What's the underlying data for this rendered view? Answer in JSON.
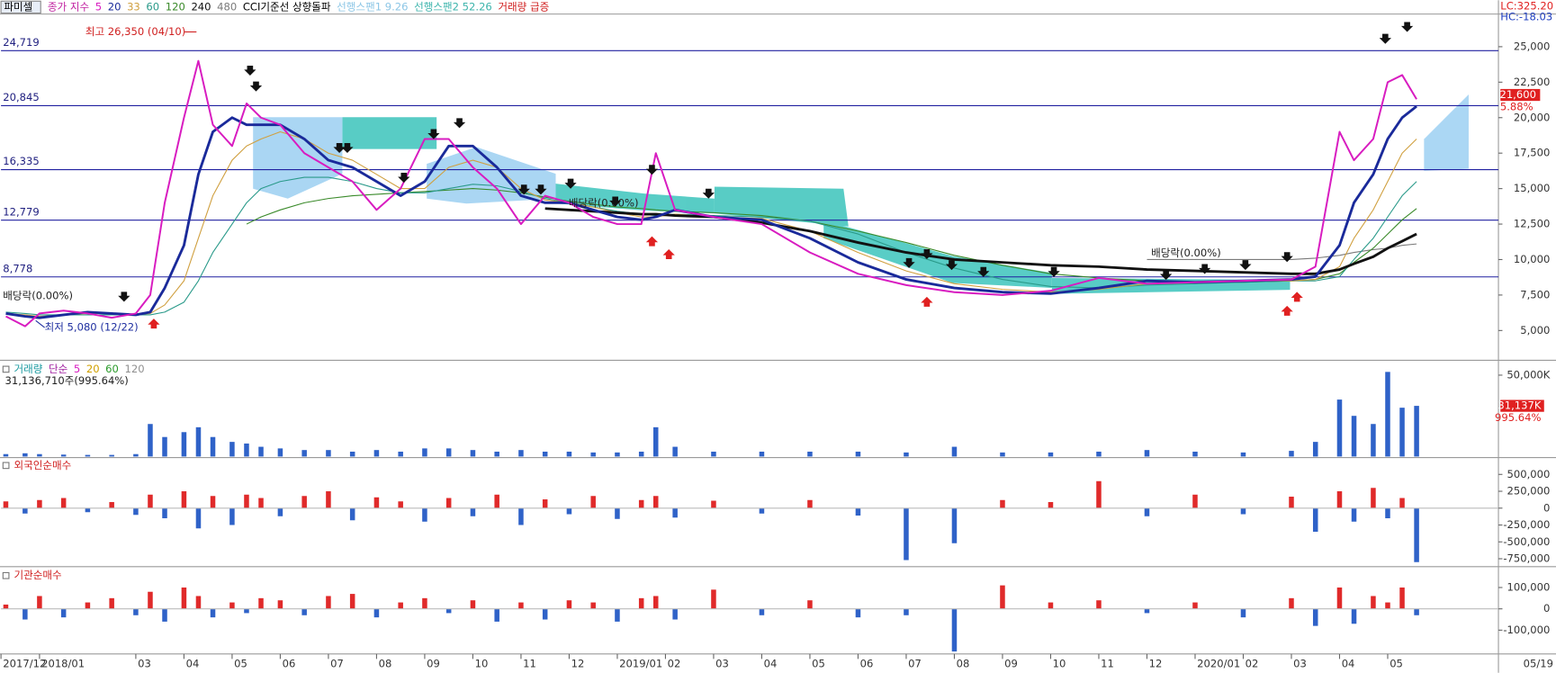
{
  "chart_data": [
    {
      "type": "line",
      "title": "파미셀",
      "legend_title": "종가 지수",
      "signals": [
        {
          "label": "CCI기준선 상향돌파",
          "color": "#000000"
        },
        {
          "label": "선행스팬1 9.26",
          "color": "#8cc6e6"
        },
        {
          "label": "선행스팬2 52.26",
          "color": "#3cb4ac"
        },
        {
          "label": "거래량 급증",
          "color": "#d02020"
        }
      ],
      "x": [
        0.3,
        0.7,
        1.0,
        1.5,
        2.0,
        2.5,
        3.0,
        3.3,
        3.6,
        4.0,
        4.3,
        4.6,
        5.0,
        5.3,
        5.6,
        6.0,
        6.5,
        7.0,
        7.5,
        8.0,
        8.5,
        9.0,
        9.5,
        10.0,
        10.5,
        11.0,
        11.5,
        12.0,
        12.5,
        13.0,
        13.5,
        13.8,
        14.2,
        15.0,
        16.0,
        17.0,
        18.0,
        19.0,
        20.0,
        21.0,
        22.0,
        23.0,
        24.0,
        25.0,
        26.0,
        27.0,
        27.5,
        28.0,
        28.3,
        28.7,
        29.0,
        29.3,
        29.6
      ],
      "xlim": [
        0.2,
        31.3
      ],
      "ylim": [
        2970,
        27300
      ],
      "yticks": [
        {
          "value": 5000,
          "label": "5,000"
        },
        {
          "value": 7500,
          "label": "7,500"
        },
        {
          "value": 10000,
          "label": "10,000"
        },
        {
          "value": 12500,
          "label": "12,500"
        },
        {
          "value": 15000,
          "label": "15,000"
        },
        {
          "value": 17500,
          "label": "17,500"
        },
        {
          "value": 20000,
          "label": "20,000"
        },
        {
          "value": 22500,
          "label": "22,500"
        },
        {
          "value": 25000,
          "label": "25,000"
        }
      ],
      "series": [
        {
          "name": "5",
          "color": "#d81cc0",
          "values": [
            6000,
            5300,
            6200,
            6400,
            6200,
            5900,
            6200,
            7500,
            14000,
            20000,
            24000,
            19500,
            18000,
            21000,
            20000,
            19500,
            17500,
            16500,
            15500,
            13500,
            15000,
            18500,
            18500,
            16500,
            15000,
            12500,
            14500,
            14000,
            13000,
            12500,
            12500,
            17500,
            13500,
            13000,
            12500,
            10500,
            9000,
            8200,
            7700,
            7500,
            7800,
            8700,
            8300,
            8400,
            8500,
            8600,
            9500,
            19000,
            17000,
            18500,
            22500,
            23000,
            21300
          ]
        },
        {
          "name": "20",
          "color": "#1a2a9a",
          "values": [
            6200,
            6000,
            5900,
            6100,
            6300,
            6200,
            6100,
            6300,
            8000,
            11000,
            16000,
            19000,
            20000,
            19500,
            19500,
            19500,
            18500,
            17000,
            16500,
            15500,
            14500,
            15500,
            18000,
            18000,
            16500,
            14500,
            14000,
            14000,
            13500,
            13000,
            12800,
            13000,
            13500,
            13000,
            12800,
            11500,
            9800,
            8600,
            8000,
            7700,
            7600,
            8000,
            8500,
            8400,
            8500,
            8600,
            8800,
            11000,
            14000,
            16000,
            18500,
            20000,
            20800
          ]
        },
        {
          "name": "33",
          "color": "#d0a040",
          "values": [
            6200,
            6100,
            6000,
            6100,
            6200,
            6200,
            6100,
            6200,
            6800,
            8500,
            11500,
            14500,
            17000,
            18000,
            18500,
            19000,
            18500,
            17500,
            17000,
            16000,
            15000,
            15000,
            16500,
            17000,
            16500,
            15000,
            14200,
            14000,
            13700,
            13300,
            13000,
            13000,
            13200,
            13000,
            12900,
            12000,
            10500,
            9200,
            8300,
            7900,
            7700,
            7900,
            8300,
            8400,
            8500,
            8500,
            8600,
            9500,
            11500,
            13500,
            15500,
            17500,
            18500
          ]
        },
        {
          "name": "60",
          "color": "#2a9a8a",
          "values": [
            6300,
            6200,
            6100,
            6100,
            6100,
            6100,
            6100,
            6100,
            6300,
            7000,
            8500,
            10500,
            12500,
            14000,
            15000,
            15500,
            15800,
            15800,
            15500,
            15000,
            14700,
            14700,
            15000,
            15300,
            15200,
            14800,
            14300,
            14000,
            13700,
            13400,
            13200,
            13100,
            13200,
            13100,
            13000,
            12700,
            11800,
            10500,
            9400,
            8600,
            8100,
            8000,
            8200,
            8300,
            8400,
            8500,
            8500,
            8800,
            10000,
            11500,
            13000,
            14500,
            15500
          ]
        },
        {
          "name": "120",
          "color": "#3a8a2a",
          "values": [
            null,
            null,
            null,
            null,
            null,
            null,
            null,
            null,
            null,
            null,
            null,
            null,
            null,
            12500,
            13000,
            13500,
            14000,
            14300,
            14500,
            14600,
            14700,
            14800,
            14900,
            15000,
            14900,
            14700,
            14400,
            14100,
            13900,
            13700,
            13600,
            13500,
            13400,
            13300,
            13100,
            12700,
            12000,
            11200,
            10300,
            9600,
            9000,
            8700,
            8500,
            8400,
            8400,
            8500,
            8600,
            9000,
            9800,
            10800,
            11800,
            12800,
            13600
          ]
        },
        {
          "name": "240",
          "color": "#111111",
          "values": [
            null,
            null,
            null,
            null,
            null,
            null,
            null,
            null,
            null,
            null,
            null,
            null,
            null,
            null,
            null,
            null,
            null,
            null,
            null,
            null,
            null,
            null,
            null,
            null,
            null,
            null,
            13600,
            13500,
            13400,
            13300,
            13200,
            13200,
            13100,
            13000,
            12600,
            12000,
            11200,
            10500,
            10000,
            9800,
            9600,
            9500,
            9300,
            9200,
            9100,
            9000,
            9000,
            9300,
            9700,
            10200,
            10800,
            11300,
            11800
          ]
        },
        {
          "name": "480",
          "color": "#7a7a7a",
          "values": [
            null,
            null,
            null,
            null,
            null,
            null,
            null,
            null,
            null,
            null,
            null,
            null,
            null,
            null,
            null,
            null,
            null,
            null,
            null,
            null,
            null,
            null,
            null,
            null,
            null,
            null,
            null,
            null,
            null,
            null,
            null,
            null,
            null,
            null,
            null,
            null,
            null,
            null,
            null,
            null,
            null,
            null,
            10000,
            10000,
            10000,
            10000,
            10100,
            10300,
            10500,
            10700,
            10800,
            11000,
            11100
          ]
        }
      ],
      "levels": [
        {
          "value": 24719,
          "label": "24,719"
        },
        {
          "value": 20845,
          "label": "20,845"
        },
        {
          "value": 16335,
          "label": "16,335"
        },
        {
          "value": 12779,
          "label": "12,779"
        },
        {
          "value": 8778,
          "label": "8,778"
        }
      ],
      "current_price": {
        "value": 21600,
        "label": "21,600"
      },
      "current_change": "5.88%",
      "lc": "LC:325.20",
      "hc": "HC:-18.03",
      "annotations": [
        "최고 26,350 (04/10)",
        "최저 5,080 (12/22)",
        "배당락(0.00%)",
        "배당락(0.00%)",
        "배당락(0.00%)"
      ]
    },
    {
      "type": "bar",
      "title": "거래량",
      "title_color": "#1a9aa0",
      "legend": [
        {
          "label": "단순",
          "color": "#a020a0"
        },
        {
          "label": "5",
          "color": "#d81cc0"
        },
        {
          "label": "20",
          "color": "#d0a000"
        },
        {
          "label": "60",
          "color": "#2a9a2a"
        },
        {
          "label": "120",
          "color": "#909090"
        }
      ],
      "subtitle": "31,136,710주(995.64%)",
      "x": [
        0.3,
        0.7,
        1.0,
        1.5,
        2.0,
        2.5,
        3.0,
        3.3,
        3.6,
        4.0,
        4.3,
        4.6,
        5.0,
        5.3,
        5.6,
        6.0,
        6.5,
        7.0,
        7.5,
        8.0,
        8.5,
        9.0,
        9.5,
        10.0,
        10.5,
        11.0,
        11.5,
        12.0,
        12.5,
        13.0,
        13.5,
        13.8,
        14.2,
        15.0,
        16.0,
        17.0,
        18.0,
        19.0,
        20.0,
        21.0,
        22.0,
        23.0,
        24.0,
        25.0,
        26.0,
        27.0,
        27.5,
        28.0,
        28.3,
        28.7,
        29.0,
        29.3,
        29.6
      ],
      "xlim": [
        0.2,
        31.3
      ],
      "values": [
        1500,
        2000,
        1500,
        1200,
        1000,
        1000,
        1500,
        20000,
        12000,
        15000,
        18000,
        12000,
        9000,
        8000,
        6000,
        5000,
        4000,
        4000,
        3000,
        4000,
        3000,
        5000,
        5000,
        4000,
        3000,
        4000,
        3000,
        3000,
        2500,
        2500,
        3000,
        18000,
        6000,
        3000,
        3000,
        3000,
        3000,
        2500,
        6000,
        2500,
        2500,
        3000,
        4000,
        3000,
        2500,
        3500,
        9000,
        35000,
        25000,
        20000,
        52000,
        30000,
        31137
      ],
      "pos_color": "#2f62c8",
      "neg_color": "#2f62c8",
      "current": {
        "value": 31137,
        "label": "31,137K"
      },
      "current_change": "995.64%",
      "ylim": [
        0,
        57900
      ],
      "yticks": [
        {
          "value": 50000,
          "label": "50,000K"
        }
      ]
    },
    {
      "type": "bar",
      "title": "외국인순매수",
      "title_color": "#d02020",
      "x": [
        0.3,
        0.7,
        1.0,
        1.5,
        2.0,
        2.5,
        3.0,
        3.3,
        3.6,
        4.0,
        4.3,
        4.6,
        5.0,
        5.3,
        5.6,
        6.0,
        6.5,
        7.0,
        7.5,
        8.0,
        8.5,
        9.0,
        9.5,
        10.0,
        10.5,
        11.0,
        11.5,
        12.0,
        12.5,
        13.0,
        13.5,
        13.8,
        14.2,
        15.0,
        16.0,
        17.0,
        18.0,
        19.0,
        20.0,
        21.0,
        22.0,
        23.0,
        24.0,
        25.0,
        26.0,
        27.0,
        27.5,
        28.0,
        28.3,
        28.7,
        29.0,
        29.3,
        29.6
      ],
      "xlim": [
        0.2,
        31.3
      ],
      "values": [
        100000,
        -80000,
        120000,
        150000,
        -60000,
        90000,
        -100000,
        200000,
        -150000,
        250000,
        -300000,
        180000,
        -250000,
        200000,
        150000,
        -120000,
        180000,
        250000,
        -180000,
        160000,
        100000,
        -200000,
        150000,
        -120000,
        200000,
        -250000,
        130000,
        -90000,
        180000,
        -160000,
        120000,
        180000,
        -140000,
        110000,
        -80000,
        120000,
        -110000,
        -770000,
        -520000,
        120000,
        90000,
        400000,
        -120000,
        200000,
        -90000,
        170000,
        -350000,
        250000,
        -200000,
        300000,
        -150000,
        150000,
        -800000
      ],
      "pos_color": "#e02a2a",
      "neg_color": "#2f62c8",
      "ylim": [
        -852900,
        735300
      ],
      "yticks": [
        {
          "value": 500000,
          "label": "500,000"
        },
        {
          "value": 250000,
          "label": "250,000"
        },
        0,
        {
          "value": -250000,
          "label": "-250,000"
        },
        {
          "value": -500000,
          "label": "-500,000"
        },
        {
          "value": -750000,
          "label": "-750,000"
        }
      ]
    },
    {
      "type": "bar",
      "title": "기관순매수",
      "title_color": "#d02020",
      "x": [
        0.3,
        0.7,
        1.0,
        1.5,
        2.0,
        2.5,
        3.0,
        3.3,
        3.6,
        4.0,
        4.3,
        4.6,
        5.0,
        5.3,
        5.6,
        6.0,
        6.5,
        7.0,
        7.5,
        8.0,
        8.5,
        9.0,
        9.5,
        10.0,
        10.5,
        11.0,
        11.5,
        12.0,
        12.5,
        13.0,
        13.5,
        13.8,
        14.2,
        15.0,
        16.0,
        17.0,
        18.0,
        19.0,
        20.0,
        21.0,
        22.0,
        23.0,
        24.0,
        25.0,
        26.0,
        27.0,
        27.5,
        28.0,
        28.3,
        28.7,
        29.0,
        29.3,
        29.6
      ],
      "xlim": [
        0.2,
        31.3
      ],
      "values": [
        20000,
        -50000,
        60000,
        -40000,
        30000,
        50000,
        -30000,
        80000,
        -60000,
        100000,
        60000,
        -40000,
        30000,
        -20000,
        50000,
        40000,
        -30000,
        60000,
        70000,
        -40000,
        30000,
        50000,
        -20000,
        40000,
        -60000,
        30000,
        -50000,
        40000,
        30000,
        -60000,
        50000,
        60000,
        -50000,
        90000,
        -30000,
        40000,
        -40000,
        -30000,
        -200000,
        110000,
        30000,
        40000,
        -20000,
        30000,
        -40000,
        50000,
        -80000,
        100000,
        -70000,
        60000,
        30000,
        100000,
        -30000
      ],
      "pos_color": "#e02a2a",
      "neg_color": "#2f62c8",
      "ylim": [
        -207000,
        188400
      ],
      "yticks": [
        {
          "value": 100000,
          "label": "100,000"
        },
        0,
        {
          "value": -100000,
          "label": "-100,000"
        }
      ],
      "xticks": [
        {
          "value": 0.2,
          "label": "2017/12"
        },
        {
          "value": 1,
          "label": "2018/01"
        },
        {
          "value": 3,
          "label": "03"
        },
        {
          "value": 4,
          "label": "04"
        },
        {
          "value": 5,
          "label": "05"
        },
        {
          "value": 6,
          "label": "06"
        },
        {
          "value": 7,
          "label": "07"
        },
        {
          "value": 8,
          "label": "08"
        },
        {
          "value": 9,
          "label": "09"
        },
        10,
        11,
        12,
        {
          "value": 13,
          "label": "2019/01"
        },
        {
          "value": 14,
          "label": "02"
        },
        {
          "value": 15,
          "label": "03"
        },
        {
          "value": 16,
          "label": "04"
        },
        {
          "value": 17,
          "label": "05"
        },
        {
          "value": 18,
          "label": "06"
        },
        {
          "value": 19,
          "label": "07"
        },
        {
          "value": 20,
          "label": "08"
        },
        {
          "value": 21,
          "label": "09"
        },
        {
          "value": 22,
          "label": "10"
        },
        {
          "value": 23,
          "label": "11"
        },
        {
          "value": 24,
          "label": "12"
        },
        {
          "value": 25,
          "label": "2020/01"
        },
        {
          "value": 26,
          "label": "02"
        },
        {
          "value": 27,
          "label": "03"
        },
        {
          "value": 28,
          "label": "04"
        },
        {
          "value": 29,
          "label": "05"
        }
      ],
      "date_label": "05/19"
    }
  ]
}
